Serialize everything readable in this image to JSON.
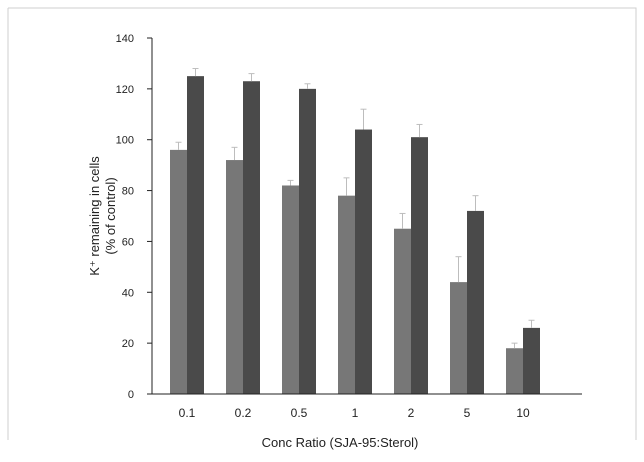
{
  "chart_data": {
    "type": "bar",
    "title": "",
    "xlabel": "Conc Ratio (SJA-95:Sterol)",
    "ylabel_line1": "K⁺ remaining in cells",
    "ylabel_line2": "(% of control)",
    "categories": [
      "0.1",
      "0.2",
      "0.5",
      "1",
      "2",
      "5",
      "10"
    ],
    "series": [
      {
        "values": [
          96,
          92,
          82,
          78,
          65,
          44,
          18
        ],
        "errors": [
          3,
          5,
          2,
          7,
          6,
          10,
          2
        ],
        "color": "#777777"
      },
      {
        "values": [
          125,
          123,
          120,
          104,
          101,
          72,
          26
        ],
        "errors": [
          3,
          3,
          2,
          8,
          5,
          6,
          3
        ],
        "color": "#4a4a4a"
      }
    ],
    "ylim": [
      0,
      140
    ],
    "yticks": [
      0,
      20,
      40,
      60,
      80,
      100,
      120,
      140
    ],
    "grid": false,
    "legend": "none"
  },
  "colors": {
    "axis": "#222222",
    "text": "#222222",
    "error_bar": "#bdbdbd",
    "frame": "#cfcfcf"
  }
}
